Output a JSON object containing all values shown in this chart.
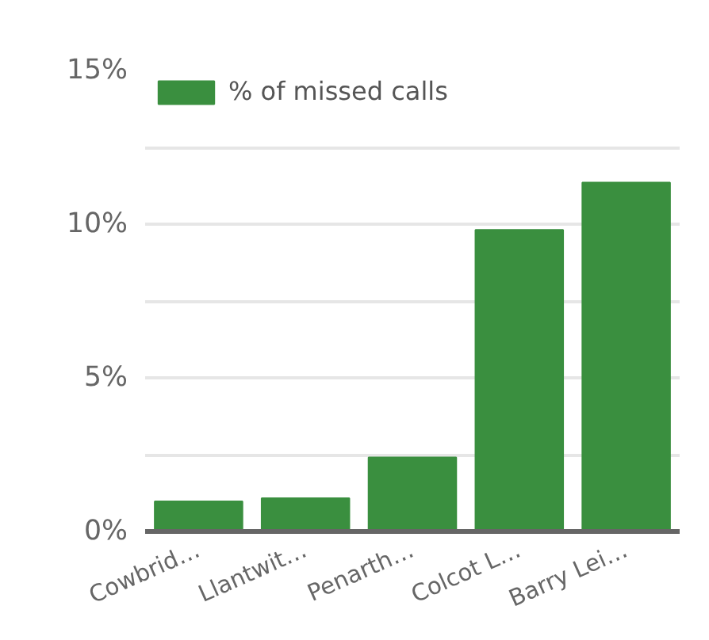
{
  "chart_data": {
    "type": "bar",
    "categories": [
      "Cowbrid…",
      "Llantwit…",
      "Penarth…",
      "Colcot L…",
      "Barry Lei…"
    ],
    "series": [
      {
        "name": "% of missed calls",
        "color": "#3a8f3f",
        "values": [
          0.98,
          1.08,
          2.41,
          9.81,
          11.35
        ]
      }
    ],
    "ylim": [
      0,
      15
    ],
    "yticks": [
      {
        "value": 0,
        "label": "0%"
      },
      {
        "value": 2.5,
        "label": null
      },
      {
        "value": 5,
        "label": "5%"
      },
      {
        "value": 7.5,
        "label": null
      },
      {
        "value": 10,
        "label": "10%"
      },
      {
        "value": 12.5,
        "label": null
      },
      {
        "value": 15,
        "label": "15%"
      }
    ],
    "grid": "y",
    "legend": "top left"
  }
}
